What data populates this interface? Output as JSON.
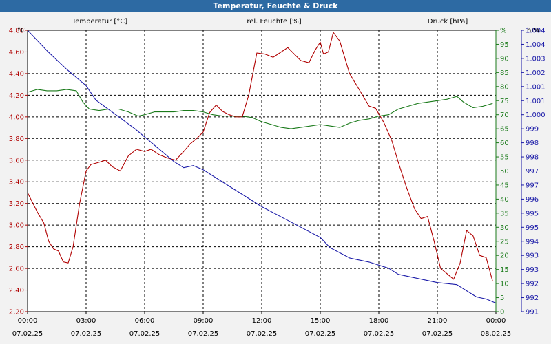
{
  "window_title": "Temperatur, Feuchte & Druck",
  "colors": {
    "temperature": "#b00000",
    "humidity": "#1a7a1a",
    "pressure": "#1a1aa8",
    "grid": "#000000",
    "plot_bg": "#ffffff"
  },
  "chart_data": {
    "type": "line",
    "title": "Temperatur, Feuchte & Druck",
    "grid": true,
    "x_range": [
      "2025-02-07 00:00",
      "2025-02-08 00:00"
    ],
    "x_ticks": [
      {
        "time": "00:00",
        "date": "07.02.25"
      },
      {
        "time": "03:00",
        "date": "07.02.25"
      },
      {
        "time": "06:00",
        "date": "07.02.25"
      },
      {
        "time": "09:00",
        "date": "07.02.25"
      },
      {
        "time": "12:00",
        "date": "07.02.25"
      },
      {
        "time": "15:00",
        "date": "07.02.25"
      },
      {
        "time": "18:00",
        "date": "07.02.25"
      },
      {
        "time": "21:00",
        "date": "07.02.25"
      },
      {
        "time": "00:00",
        "date": "08.02.25"
      }
    ],
    "axes": {
      "temperature": {
        "label": "Temperatur [°C]",
        "unit": "°C",
        "range": [
          2.2,
          4.8
        ],
        "ticks": [
          "2,20",
          "2,40",
          "2,60",
          "2,80",
          "3,00",
          "3,20",
          "3,40",
          "3,60",
          "3,80",
          "4,00",
          "4,20",
          "4,40",
          "4,60",
          "4,80"
        ]
      },
      "humidity": {
        "label": "rel. Feuchte [%]",
        "unit": "%",
        "range": [
          0,
          100
        ],
        "ticks": [
          "0",
          "5",
          "10",
          "15",
          "20",
          "25",
          "30",
          "35",
          "40",
          "45",
          "50",
          "55",
          "60",
          "65",
          "70",
          "75",
          "80",
          "85",
          "90",
          "95",
          "%"
        ]
      },
      "pressure": {
        "label": "Druck [hPa]",
        "unit": "hPa",
        "range": [
          990.88,
          1004.6
        ],
        "ticks": [
          "991",
          "992",
          "992",
          "993",
          "993",
          "994",
          "995",
          "995",
          "996",
          "997",
          "997",
          "998",
          "998",
          "999",
          "1.000",
          "1.001",
          "1.001",
          "1.002",
          "1.003",
          "1.004",
          "1.004"
        ]
      }
    },
    "series": [
      {
        "name": "Temperatur [°C]",
        "axis": "temperature",
        "points": [
          [
            "2025-02-07 00:00",
            3.3
          ],
          [
            "2025-02-07 00:30",
            3.12
          ],
          [
            "2025-02-07 00:50",
            3.02
          ],
          [
            "2025-02-07 01:05",
            2.85
          ],
          [
            "2025-02-07 01:20",
            2.78
          ],
          [
            "2025-02-07 01:35",
            2.76
          ],
          [
            "2025-02-07 01:50",
            2.66
          ],
          [
            "2025-02-07 02:05",
            2.65
          ],
          [
            "2025-02-07 02:20",
            2.8
          ],
          [
            "2025-02-07 02:40",
            3.2
          ],
          [
            "2025-02-07 03:00",
            3.5
          ],
          [
            "2025-02-07 03:15",
            3.56
          ],
          [
            "2025-02-07 03:40",
            3.58
          ],
          [
            "2025-02-07 04:00",
            3.6
          ],
          [
            "2025-02-07 04:20",
            3.54
          ],
          [
            "2025-02-07 04:45",
            3.5
          ],
          [
            "2025-02-07 05:10",
            3.64
          ],
          [
            "2025-02-07 05:35",
            3.7
          ],
          [
            "2025-02-07 06:00",
            3.68
          ],
          [
            "2025-02-07 06:20",
            3.7
          ],
          [
            "2025-02-07 06:45",
            3.65
          ],
          [
            "2025-02-07 07:10",
            3.62
          ],
          [
            "2025-02-07 07:35",
            3.6
          ],
          [
            "2025-02-07 08:00",
            3.68
          ],
          [
            "2025-02-07 08:20",
            3.75
          ],
          [
            "2025-02-07 08:40",
            3.8
          ],
          [
            "2025-02-07 09:00",
            3.86
          ],
          [
            "2025-02-07 09:20",
            4.04
          ],
          [
            "2025-02-07 09:40",
            4.11
          ],
          [
            "2025-02-07 10:00",
            4.05
          ],
          [
            "2025-02-07 10:20",
            4.02
          ],
          [
            "2025-02-07 10:40",
            4.0
          ],
          [
            "2025-02-07 11:00",
            4.0
          ],
          [
            "2025-02-07 11:20",
            4.2
          ],
          [
            "2025-02-07 11:45",
            4.59
          ],
          [
            "2025-02-07 12:10",
            4.58
          ],
          [
            "2025-02-07 12:35",
            4.55
          ],
          [
            "2025-02-07 13:00",
            4.6
          ],
          [
            "2025-02-07 13:20",
            4.64
          ],
          [
            "2025-02-07 13:40",
            4.58
          ],
          [
            "2025-02-07 14:00",
            4.52
          ],
          [
            "2025-02-07 14:25",
            4.5
          ],
          [
            "2025-02-07 14:45",
            4.62
          ],
          [
            "2025-02-07 15:00",
            4.69
          ],
          [
            "2025-02-07 15:10",
            4.58
          ],
          [
            "2025-02-07 15:25",
            4.6
          ],
          [
            "2025-02-07 15:40",
            4.78
          ],
          [
            "2025-02-07 16:00",
            4.7
          ],
          [
            "2025-02-07 16:30",
            4.4
          ],
          [
            "2025-02-07 17:00",
            4.25
          ],
          [
            "2025-02-07 17:30",
            4.1
          ],
          [
            "2025-02-07 17:50",
            4.08
          ],
          [
            "2025-02-07 18:15",
            3.95
          ],
          [
            "2025-02-07 18:40",
            3.78
          ],
          [
            "2025-02-07 19:00",
            3.58
          ],
          [
            "2025-02-07 19:25",
            3.35
          ],
          [
            "2025-02-07 19:50",
            3.15
          ],
          [
            "2025-02-07 20:10",
            3.06
          ],
          [
            "2025-02-07 20:30",
            3.08
          ],
          [
            "2025-02-07 20:50",
            2.85
          ],
          [
            "2025-02-07 21:10",
            2.6
          ],
          [
            "2025-02-07 21:30",
            2.55
          ],
          [
            "2025-02-07 21:50",
            2.5
          ],
          [
            "2025-02-07 22:10",
            2.65
          ],
          [
            "2025-02-07 22:30",
            2.95
          ],
          [
            "2025-02-07 22:50",
            2.9
          ],
          [
            "2025-02-07 23:10",
            2.72
          ],
          [
            "2025-02-07 23:30",
            2.7
          ],
          [
            "2025-02-07 23:50",
            2.48
          ]
        ]
      },
      {
        "name": "rel. Feuchte [%]",
        "axis": "humidity",
        "points": [
          [
            "2025-02-07 00:00",
            78.0
          ],
          [
            "2025-02-07 00:30",
            79.0
          ],
          [
            "2025-02-07 01:00",
            78.5
          ],
          [
            "2025-02-07 01:30",
            78.5
          ],
          [
            "2025-02-07 02:00",
            79.0
          ],
          [
            "2025-02-07 02:30",
            78.5
          ],
          [
            "2025-02-07 02:50",
            74.5
          ],
          [
            "2025-02-07 03:10",
            72.0
          ],
          [
            "2025-02-07 03:40",
            71.5
          ],
          [
            "2025-02-07 04:10",
            72.0
          ],
          [
            "2025-02-07 04:40",
            72.0
          ],
          [
            "2025-02-07 05:10",
            71.0
          ],
          [
            "2025-02-07 05:40",
            69.5
          ],
          [
            "2025-02-07 06:00",
            70.0
          ],
          [
            "2025-02-07 06:30",
            71.0
          ],
          [
            "2025-02-07 07:00",
            71.0
          ],
          [
            "2025-02-07 07:30",
            71.0
          ],
          [
            "2025-02-07 08:00",
            71.5
          ],
          [
            "2025-02-07 08:30",
            71.5
          ],
          [
            "2025-02-07 09:00",
            71.0
          ],
          [
            "2025-02-07 09:30",
            70.0
          ],
          [
            "2025-02-07 10:00",
            69.5
          ],
          [
            "2025-02-07 10:30",
            69.5
          ],
          [
            "2025-02-07 11:00",
            69.5
          ],
          [
            "2025-02-07 11:30",
            69.0
          ],
          [
            "2025-02-07 12:00",
            67.5
          ],
          [
            "2025-02-07 12:30",
            66.5
          ],
          [
            "2025-02-07 13:00",
            65.5
          ],
          [
            "2025-02-07 13:30",
            65.0
          ],
          [
            "2025-02-07 14:00",
            65.5
          ],
          [
            "2025-02-07 14:30",
            66.0
          ],
          [
            "2025-02-07 15:00",
            66.5
          ],
          [
            "2025-02-07 15:30",
            66.0
          ],
          [
            "2025-02-07 16:00",
            65.5
          ],
          [
            "2025-02-07 16:30",
            67.0
          ],
          [
            "2025-02-07 17:00",
            68.0
          ],
          [
            "2025-02-07 17:30",
            68.5
          ],
          [
            "2025-02-07 18:00",
            69.5
          ],
          [
            "2025-02-07 18:30",
            70.0
          ],
          [
            "2025-02-07 19:00",
            72.0
          ],
          [
            "2025-02-07 19:30",
            73.0
          ],
          [
            "2025-02-07 20:00",
            74.0
          ],
          [
            "2025-02-07 20:30",
            74.5
          ],
          [
            "2025-02-07 21:00",
            75.0
          ],
          [
            "2025-02-07 21:30",
            75.5
          ],
          [
            "2025-02-07 22:00",
            76.5
          ],
          [
            "2025-02-07 22:20",
            74.5
          ],
          [
            "2025-02-07 22:50",
            72.5
          ],
          [
            "2025-02-07 23:20",
            73.0
          ],
          [
            "2025-02-07 23:50",
            74.0
          ]
        ]
      },
      {
        "name": "Druck [hPa]",
        "axis": "pressure",
        "points": [
          [
            "2025-02-07 00:00",
            1004.6
          ],
          [
            "2025-02-07 01:00",
            1003.6
          ],
          [
            "2025-02-07 02:00",
            1002.7
          ],
          [
            "2025-02-07 03:00",
            1001.9
          ],
          [
            "2025-02-07 03:30",
            1001.2
          ],
          [
            "2025-02-07 04:30",
            1000.5
          ],
          [
            "2025-02-07 05:30",
            999.8
          ],
          [
            "2025-02-07 06:30",
            999.0
          ],
          [
            "2025-02-07 07:30",
            998.2
          ],
          [
            "2025-02-07 08:00",
            997.9
          ],
          [
            "2025-02-07 08:30",
            998.0
          ],
          [
            "2025-02-07 09:00",
            997.8
          ],
          [
            "2025-02-07 10:00",
            997.2
          ],
          [
            "2025-02-07 11:00",
            996.6
          ],
          [
            "2025-02-07 12:00",
            996.0
          ],
          [
            "2025-02-07 13:00",
            995.5
          ],
          [
            "2025-02-07 14:00",
            995.0
          ],
          [
            "2025-02-07 15:00",
            994.5
          ],
          [
            "2025-02-07 15:30",
            994.0
          ],
          [
            "2025-02-07 16:30",
            993.5
          ],
          [
            "2025-02-07 17:30",
            993.3
          ],
          [
            "2025-02-07 18:30",
            993.0
          ],
          [
            "2025-02-07 19:00",
            992.7
          ],
          [
            "2025-02-07 20:00",
            992.5
          ],
          [
            "2025-02-07 21:00",
            992.3
          ],
          [
            "2025-02-07 22:00",
            992.2
          ],
          [
            "2025-02-07 23:00",
            991.6
          ],
          [
            "2025-02-07 23:30",
            991.5
          ],
          [
            "2025-02-08 00:00",
            991.3
          ]
        ]
      }
    ]
  }
}
